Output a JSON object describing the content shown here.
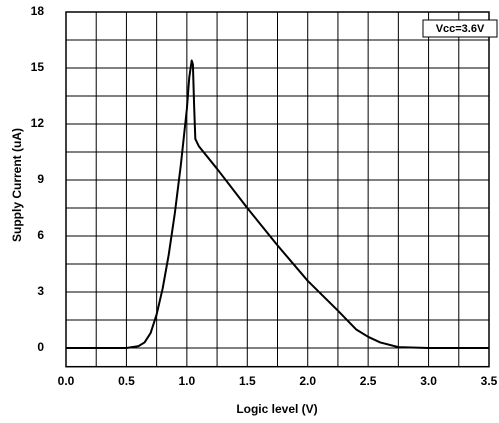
{
  "chart_data": {
    "type": "line",
    "xlabel": "Logic level (V)",
    "ylabel": "Supply Current (uA)",
    "annotation": "Vcc=3.6V",
    "xlim": [
      0,
      3.5
    ],
    "ylim": [
      -1,
      18
    ],
    "xticks": [
      {
        "value": 0,
        "label": "0.0"
      },
      {
        "value": 0.5,
        "label": "0.5"
      },
      {
        "value": 1,
        "label": "1.0"
      },
      {
        "value": 1.5,
        "label": "1.5"
      },
      {
        "value": 2,
        "label": "2.0"
      },
      {
        "value": 2.5,
        "label": "2.5"
      },
      {
        "value": 3,
        "label": "3.0"
      },
      {
        "value": 3.5,
        "label": "3.5"
      }
    ],
    "xminorticks": [
      0.25,
      0.75,
      1.25,
      1.75,
      2.25,
      2.75,
      3.25
    ],
    "yticks": [
      0,
      3,
      6,
      9,
      12,
      15,
      18
    ],
    "yminorticks": [
      1.5,
      4.5,
      7.5,
      10.5,
      13.5,
      16.5
    ],
    "grid": true,
    "series": [
      {
        "color": "#000000",
        "x": [
          0,
          0.5,
          0.6,
          0.65,
          0.7,
          0.75,
          0.8,
          0.85,
          0.9,
          0.95,
          1.0,
          1.02,
          1.04,
          1.05,
          1.06,
          1.07,
          1.1,
          1.25,
          1.5,
          1.75,
          2.0,
          2.25,
          2.4,
          2.5,
          2.6,
          2.75,
          3.0,
          3.5
        ],
        "values": [
          0,
          0,
          0.1,
          0.3,
          0.8,
          1.8,
          3.2,
          5,
          7.2,
          9.8,
          12.8,
          14.5,
          15.4,
          15.2,
          13,
          11.2,
          10.8,
          9.6,
          7.5,
          5.5,
          3.6,
          2.0,
          1.0,
          0.6,
          0.3,
          0.05,
          0,
          0
        ]
      }
    ]
  }
}
